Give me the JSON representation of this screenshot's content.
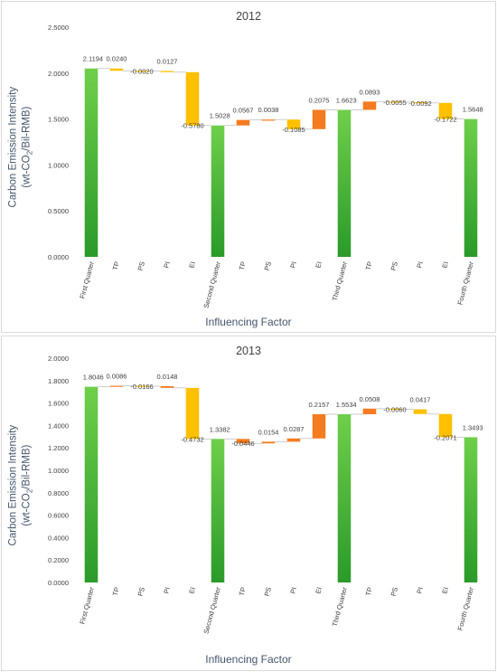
{
  "chart_data": [
    {
      "type": "waterfall",
      "title": "2012",
      "xlabel": "Influencing Factor",
      "ylabel_line1": "Carbon Emission Intensity",
      "ylabel_line2_pre": "(wt-CO",
      "ylabel_line2_sub": "2",
      "ylabel_line2_post": "/Bil-RMB)",
      "ylim": [
        0,
        2.5
      ],
      "yticks": [
        "0.0000",
        "0.5000",
        "1.0000",
        "1.5000",
        "2.0000",
        "2.5000"
      ],
      "yticks_values": [
        0,
        0.5,
        1,
        1.5,
        2,
        2.5
      ],
      "categories": [
        "First Quarter",
        "TP",
        "PS",
        "PI",
        "EI",
        "Second Quarter",
        "TP",
        "PS",
        "PI",
        "EI",
        "Third Quarter",
        "TP",
        "PS",
        "PI",
        "EI",
        "Fourth Quarter"
      ],
      "bars": [
        {
          "kind": "total",
          "value": 2.05,
          "label": "2.1194"
        },
        {
          "kind": "change",
          "from": 2.05,
          "to": 2.025,
          "label": "0.0240",
          "color": "#ffc000"
        },
        {
          "kind": "change",
          "from": 2.025,
          "to": 2.023,
          "label": "-0.0020",
          "color": "#ffc000"
        },
        {
          "kind": "change",
          "from": 2.023,
          "to": 2.01,
          "label": "0.0127",
          "color": "#ffc000"
        },
        {
          "kind": "change",
          "from": 2.01,
          "to": 1.43,
          "label": "-0.5780",
          "color": "#ffc000"
        },
        {
          "kind": "total",
          "value": 1.43,
          "label": "1.5028"
        },
        {
          "kind": "change",
          "from": 1.43,
          "to": 1.49,
          "label": "0.0567",
          "color": "#f47b20"
        },
        {
          "kind": "change",
          "from": 1.49,
          "to": 1.494,
          "label": "0.0038",
          "color": "#f47b20"
        },
        {
          "kind": "change",
          "from": 1.494,
          "to": 1.39,
          "label": "-0.1085",
          "color": "#ffc000"
        },
        {
          "kind": "change",
          "from": 1.39,
          "to": 1.6,
          "label": "0.2075",
          "color": "#f47b20"
        },
        {
          "kind": "total",
          "value": 1.6,
          "label": "1.6623"
        },
        {
          "kind": "change",
          "from": 1.6,
          "to": 1.69,
          "label": "0.0893",
          "color": "#f47b20"
        },
        {
          "kind": "change",
          "from": 1.69,
          "to": 1.684,
          "label": "-0.0055",
          "color": "#ffc000"
        },
        {
          "kind": "change",
          "from": 1.684,
          "to": 1.675,
          "label": "-0.0092",
          "color": "#ffc000"
        },
        {
          "kind": "change",
          "from": 1.675,
          "to": 1.5,
          "label": "-0.1722",
          "color": "#ffc000"
        },
        {
          "kind": "total",
          "value": 1.5,
          "label": "1.5648"
        }
      ]
    },
    {
      "type": "waterfall",
      "title": "2013",
      "xlabel": "Influencing Factor",
      "ylabel_line1": "Carbon Emission Intensity",
      "ylabel_line2_pre": "(wt-CO",
      "ylabel_line2_sub": "2",
      "ylabel_line2_post": "/Bil-RMB)",
      "ylim": [
        0,
        2.0
      ],
      "yticks": [
        "0.0000",
        "0.2000",
        "0.4000",
        "0.6000",
        "0.8000",
        "1.0000",
        "1.2000",
        "1.4000",
        "1.6000",
        "1.8000",
        "2.0000"
      ],
      "yticks_values": [
        0,
        0.2,
        0.4,
        0.6,
        0.8,
        1.0,
        1.2,
        1.4,
        1.6,
        1.8,
        2.0
      ],
      "categories": [
        "First Quarter",
        "TP",
        "PS",
        "PI",
        "EI",
        "Second Quarter",
        "TP",
        "PS",
        "PI",
        "EI",
        "Third Quarter",
        "TP",
        "PS",
        "PI",
        "EI",
        "Fourth Quarter"
      ],
      "bars": [
        {
          "kind": "total",
          "value": 1.745,
          "label": "1.8046"
        },
        {
          "kind": "change",
          "from": 1.745,
          "to": 1.754,
          "label": "0.0086",
          "color": "#f47b20"
        },
        {
          "kind": "change",
          "from": 1.754,
          "to": 1.75,
          "label": "-0.0166",
          "color": "#ffc000"
        },
        {
          "kind": "change",
          "from": 1.75,
          "to": 1.735,
          "label": "0.0148",
          "color": "#f47b20"
        },
        {
          "kind": "change",
          "from": 1.735,
          "to": 1.28,
          "label": "-0.4732",
          "color": "#ffc000"
        },
        {
          "kind": "total",
          "value": 1.28,
          "label": "1.3382"
        },
        {
          "kind": "change",
          "from": 1.28,
          "to": 1.24,
          "label": "-0.0446",
          "color": "#f47b20"
        },
        {
          "kind": "change",
          "from": 1.24,
          "to": 1.255,
          "label": "0.0154",
          "color": "#f47b20"
        },
        {
          "kind": "change",
          "from": 1.255,
          "to": 1.284,
          "label": "0.0287",
          "color": "#f47b20"
        },
        {
          "kind": "change",
          "from": 1.284,
          "to": 1.5,
          "label": "0.2157",
          "color": "#f47b20"
        },
        {
          "kind": "total",
          "value": 1.5,
          "label": "1.5534"
        },
        {
          "kind": "change",
          "from": 1.5,
          "to": 1.55,
          "label": "0.0508",
          "color": "#f47b20"
        },
        {
          "kind": "change",
          "from": 1.55,
          "to": 1.544,
          "label": "-0.0060",
          "color": "#ffc000"
        },
        {
          "kind": "change",
          "from": 1.544,
          "to": 1.502,
          "label": "0.0417",
          "color": "#ffc000"
        },
        {
          "kind": "change",
          "from": 1.502,
          "to": 1.295,
          "label": "-0.2071",
          "color": "#ffc000"
        },
        {
          "kind": "total",
          "value": 1.295,
          "label": "1.3493"
        }
      ]
    }
  ],
  "colors": {
    "total_top": "#6fcf4a",
    "total_bottom": "#2a9a2a",
    "increase": "#f47b20",
    "decrease": "#ffc000",
    "connector": "#bfbfbf",
    "tick_text": "#404040",
    "axis_title": "#44546a"
  }
}
